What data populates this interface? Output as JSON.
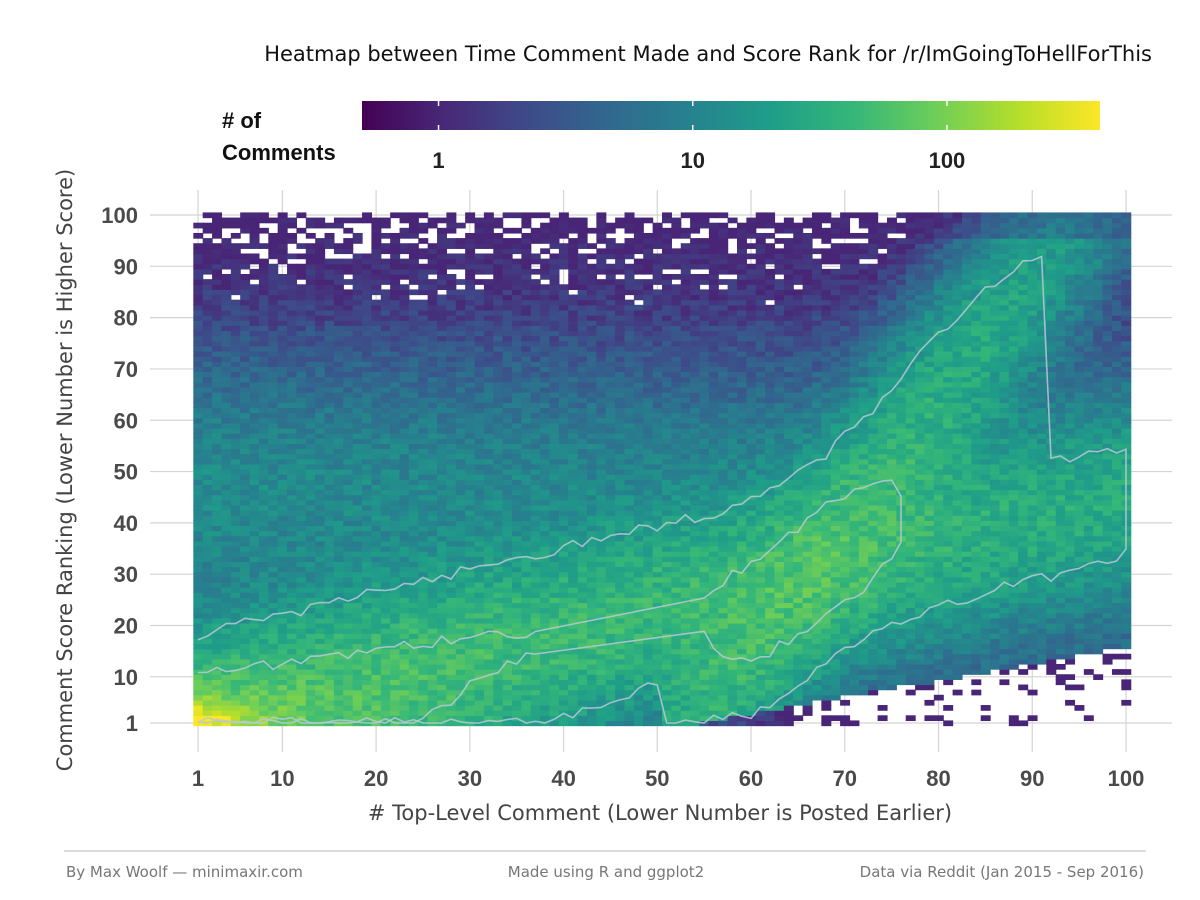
{
  "chart_data": {
    "type": "heatmap",
    "title": "Heatmap between Time Comment Made and Score Rank for /r/ImGoingToHellForThis",
    "xlabel": "# Top-Level Comment (Lower Number is Posted Earlier)",
    "ylabel": "Comment Score Ranking (Lower Number is Higher Score)",
    "xlim": [
      1,
      100
    ],
    "ylim": [
      1,
      100
    ],
    "x_ticks": [
      1,
      10,
      20,
      30,
      40,
      50,
      60,
      70,
      80,
      90,
      100
    ],
    "y_ticks": [
      1,
      10,
      20,
      30,
      40,
      50,
      60,
      70,
      80,
      90,
      100
    ],
    "grid": true,
    "color_scale": {
      "name": "viridis",
      "log": true,
      "domain": [
        0.5,
        400
      ],
      "colors": [
        "#440154",
        "#482878",
        "#3e4a89",
        "#31688e",
        "#26828e",
        "#1f9e89",
        "#35b779",
        "#6ece58",
        "#b5de2b",
        "#fde725"
      ]
    },
    "legend": {
      "title_line1": "# of",
      "title_line2": "Comments",
      "position": "top",
      "ticks": [
        {
          "value": 1,
          "label": "1"
        },
        {
          "value": 10,
          "label": "10"
        },
        {
          "value": 100,
          "label": "100"
        }
      ]
    },
    "density_model": {
      "description": "approximate cell counts by rank bin; diagonal ridge from (1,1) rising with x",
      "peak_count": 380,
      "contour_levels": [
        20,
        45
      ]
    }
  },
  "footer": {
    "left": "By Max Woolf — minimaxir.com",
    "center": "Made using R and ggplot2",
    "right": "Data via Reddit (Jan 2015 - Sep 2016)"
  }
}
